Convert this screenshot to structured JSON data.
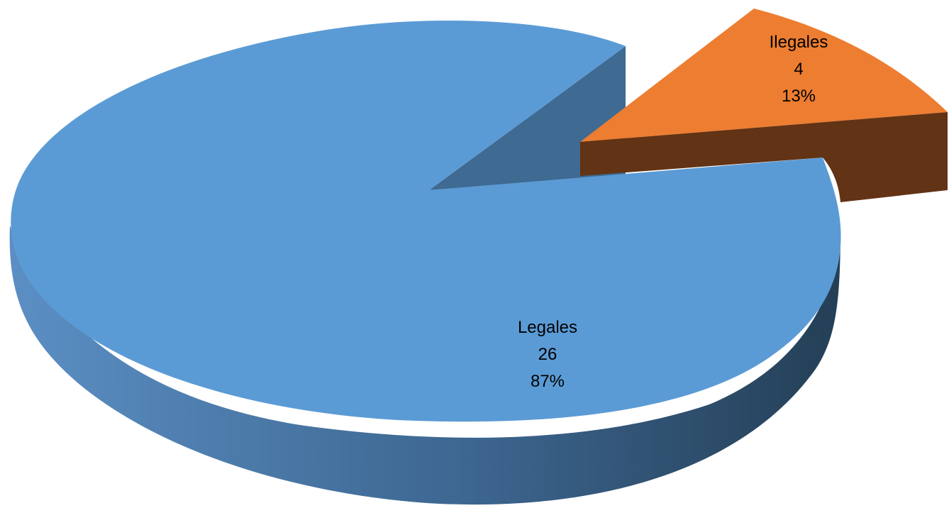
{
  "chart_data": {
    "type": "pie",
    "style": "3d-exploded",
    "legend": "none",
    "slices": [
      {
        "label": "Legales",
        "value": 26,
        "percent_label": "87%",
        "color": "#5b9bd5",
        "exploded": false
      },
      {
        "label": "Ilegales",
        "value": 4,
        "percent_label": "13%",
        "color": "#ed7d31",
        "exploded": true
      }
    ],
    "colors": {
      "legales_top": "#5b9bd5",
      "legales_side_light": "#5b8fc4",
      "legales_side_dark": "#243f56",
      "legales_inner_wall": "#3f6a92",
      "ilegales_top": "#ed7d31",
      "ilegales_side": "#623314"
    }
  }
}
